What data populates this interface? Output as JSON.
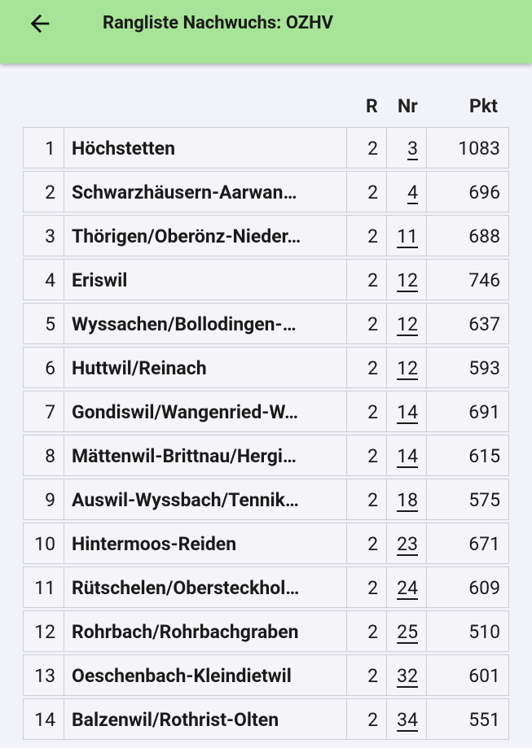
{
  "header": {
    "title": "Rangliste Nachwuchs: OZHV"
  },
  "table": {
    "columns": [
      "R",
      "Nr",
      "Pkt"
    ],
    "rows": [
      [
        1,
        "Höchstetten",
        2,
        3,
        1083
      ],
      [
        2,
        "Schwarzhäusern-Aarwan…",
        2,
        4,
        696
      ],
      [
        3,
        "Thörigen/Oberönz-Nieder…",
        2,
        11,
        688
      ],
      [
        4,
        "Eriswil",
        2,
        12,
        746
      ],
      [
        5,
        "Wyssachen/Bollodingen-…",
        2,
        12,
        637
      ],
      [
        6,
        "Huttwil/Reinach",
        2,
        12,
        593
      ],
      [
        7,
        "Gondiswil/Wangenried-W…",
        2,
        14,
        691
      ],
      [
        8,
        "Mättenwil-Brittnau/Hergi…",
        2,
        14,
        615
      ],
      [
        9,
        "Auswil-Wyssbach/Tennik…",
        2,
        18,
        575
      ],
      [
        10,
        "Hintermoos-Reiden",
        2,
        23,
        671
      ],
      [
        11,
        "Rütschelen/Obersteckhol…",
        2,
        24,
        609
      ],
      [
        12,
        "Rohrbach/Rohrbachgraben",
        2,
        25,
        510
      ],
      [
        13,
        "Oeschenbach-Kleindietwil",
        2,
        32,
        601
      ],
      [
        14,
        "Balzenwil/Rothrist-Olten",
        2,
        34,
        551
      ]
    ]
  }
}
